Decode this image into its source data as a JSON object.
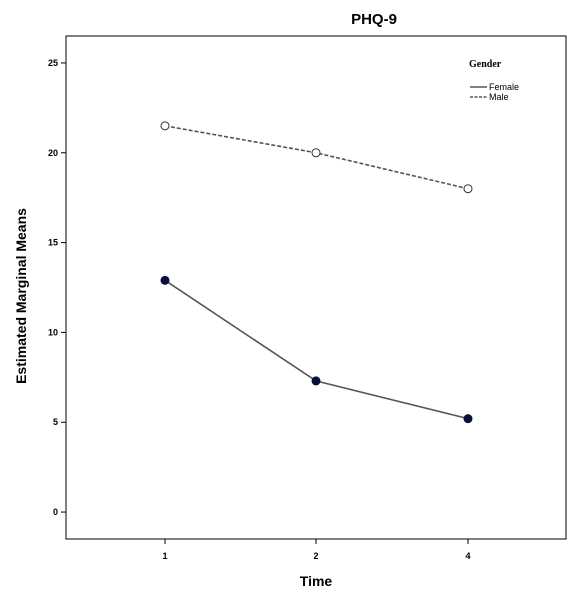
{
  "chart_data": {
    "type": "line",
    "title": "PHQ-9",
    "xlabel": "Time",
    "ylabel": "Estimated Marginal Means",
    "categories": [
      "1",
      "2",
      "4"
    ],
    "ylim": [
      -1.5,
      26.5
    ],
    "yticks": [
      0,
      5,
      10,
      15,
      20,
      25
    ],
    "grid": false,
    "legend": {
      "title": "Gender",
      "position": "top-right"
    },
    "series": [
      {
        "name": "Female",
        "values": [
          12.9,
          7.3,
          5.2
        ],
        "line_style": "solid",
        "marker": "filled-circle",
        "line_color": "#555555",
        "marker_color": "#0a0f3c"
      },
      {
        "name": "Male",
        "values": [
          21.5,
          20.0,
          18.0
        ],
        "line_style": "dashed",
        "marker": "open-circle",
        "line_color": "#555555",
        "marker_color": "#ffffff"
      }
    ]
  }
}
